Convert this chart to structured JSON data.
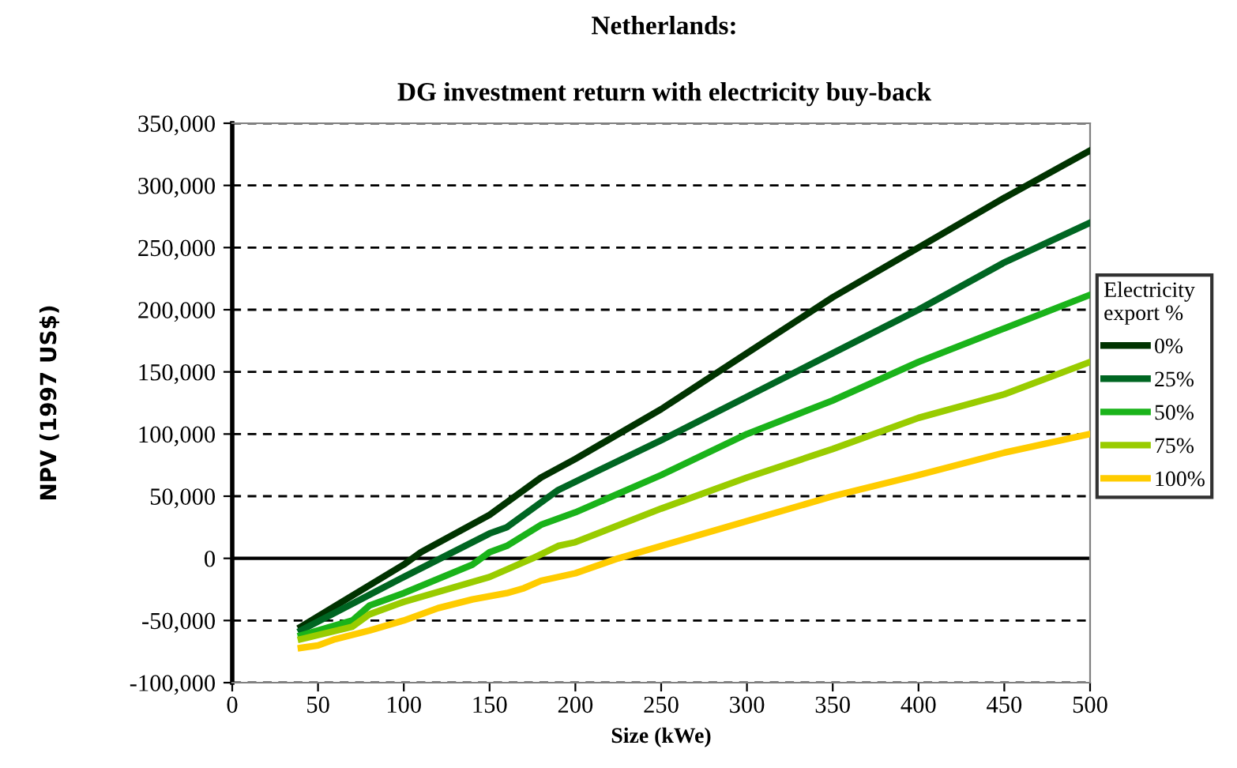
{
  "chart_data": {
    "type": "line",
    "title": "Netherlands:",
    "subtitle": "DG investment return with electricity buy-back",
    "xlabel": "Size (kWe)",
    "ylabel": "NPV (1997 US$)",
    "legend_title": "Electricity export %",
    "xlim": [
      0,
      500
    ],
    "xticks": [
      0,
      50,
      100,
      150,
      200,
      250,
      300,
      350,
      400,
      450,
      500
    ],
    "ylim": [
      -100000,
      350000
    ],
    "yticks": [
      {
        "value": -100000,
        "label": "-100,000"
      },
      {
        "value": -50000,
        "label": "-50,000"
      },
      {
        "value": 0,
        "label": "0"
      },
      {
        "value": 50000,
        "label": "50,000"
      },
      {
        "value": 100000,
        "label": "100,000"
      },
      {
        "value": 150000,
        "label": "150,000"
      },
      {
        "value": 200000,
        "label": "200,000"
      },
      {
        "value": 250000,
        "label": "250,000"
      },
      {
        "value": 300000,
        "label": "300,000"
      },
      {
        "value": 350000,
        "label": "350,000"
      }
    ],
    "grid": "y",
    "legend": "right",
    "marker": "none",
    "line_style": "solid",
    "series": [
      {
        "name": "0%",
        "color": "#003300",
        "x": [
          40,
          100,
          110,
          150,
          180,
          200,
          250,
          300,
          350,
          400,
          450,
          500
        ],
        "values": [
          -55000,
          -5000,
          5000,
          35000,
          65000,
          80000,
          120000,
          165000,
          210000,
          250000,
          290000,
          328000
        ]
      },
      {
        "name": "25%",
        "color": "#006622",
        "x": [
          40,
          100,
          150,
          160,
          190,
          250,
          300,
          350,
          400,
          450,
          500
        ],
        "values": [
          -58000,
          -15000,
          20000,
          25000,
          55000,
          95000,
          130000,
          165000,
          200000,
          238000,
          270000
        ]
      },
      {
        "name": "50%",
        "color": "#1ab31a",
        "x": [
          40,
          70,
          80,
          100,
          140,
          150,
          160,
          180,
          200,
          250,
          300,
          350,
          400,
          450,
          500
        ],
        "values": [
          -62000,
          -50000,
          -38000,
          -28000,
          -5000,
          5000,
          10000,
          27000,
          37000,
          67000,
          100000,
          127000,
          158000,
          185000,
          212000
        ]
      },
      {
        "name": "75%",
        "color": "#99cc00",
        "x": [
          40,
          70,
          80,
          100,
          150,
          175,
          190,
          200,
          250,
          300,
          350,
          400,
          450,
          500
        ],
        "values": [
          -65000,
          -55000,
          -45000,
          -35000,
          -15000,
          0,
          10000,
          13000,
          40000,
          65000,
          88000,
          113000,
          132000,
          158000
        ]
      },
      {
        "name": "100%",
        "color": "#ffcc00",
        "x": [
          40,
          50,
          60,
          80,
          100,
          120,
          140,
          160,
          170,
          180,
          200,
          225,
          250,
          300,
          350,
          400,
          450,
          500
        ],
        "values": [
          -72000,
          -70000,
          -65000,
          -58000,
          -50000,
          -40000,
          -33000,
          -28000,
          -24000,
          -18000,
          -12000,
          0,
          10000,
          30000,
          50000,
          67000,
          85000,
          100000
        ]
      }
    ]
  }
}
